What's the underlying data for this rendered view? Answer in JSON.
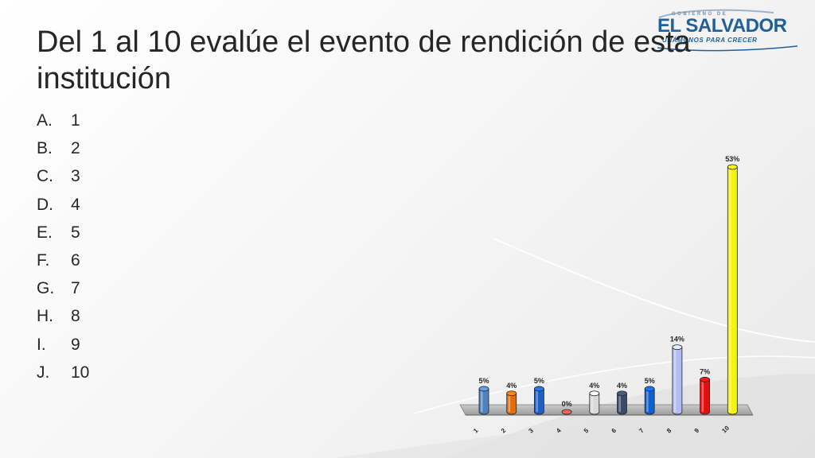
{
  "slide": {
    "title": "Del 1 al 10 evalúe el evento de rendición de esta institución",
    "logo": {
      "small_text": "GOBIERNO DE",
      "main_text": "EL SALVADOR",
      "sub_text": "UNÁMONOS PARA CRECER"
    },
    "options": [
      {
        "letter": "A.",
        "value": "1"
      },
      {
        "letter": "B.",
        "value": "2"
      },
      {
        "letter": "C.",
        "value": "3"
      },
      {
        "letter": "D.",
        "value": "4"
      },
      {
        "letter": "E.",
        "value": "5"
      },
      {
        "letter": "F.",
        "value": "6"
      },
      {
        "letter": "G.",
        "value": "7"
      },
      {
        "letter": "H.",
        "value": "8"
      },
      {
        "letter": "I.",
        "value": "9"
      },
      {
        "letter": "J.",
        "value": "10"
      }
    ]
  },
  "chart_data": {
    "type": "bar",
    "categories": [
      "1",
      "2",
      "3",
      "4",
      "5",
      "6",
      "7",
      "8",
      "9",
      "10"
    ],
    "values": [
      5,
      4,
      5,
      0,
      4,
      4,
      5,
      14,
      7,
      53
    ],
    "data_labels": [
      "5%",
      "4%",
      "5%",
      "0%",
      "4%",
      "4%",
      "5%",
      "14%",
      "7%",
      "53%"
    ],
    "colors": [
      "#4f81bd",
      "#e46c0a",
      "#1f5fbf",
      "#c0504d",
      "#d9d9d9",
      "#3b4a66",
      "#0f5fd4",
      "#b4bdf2",
      "#e01010",
      "#f5f50a"
    ],
    "ylim": [
      0,
      53
    ],
    "unit": "%",
    "grid": false,
    "legend": "none",
    "style": "3d-cylinder"
  }
}
